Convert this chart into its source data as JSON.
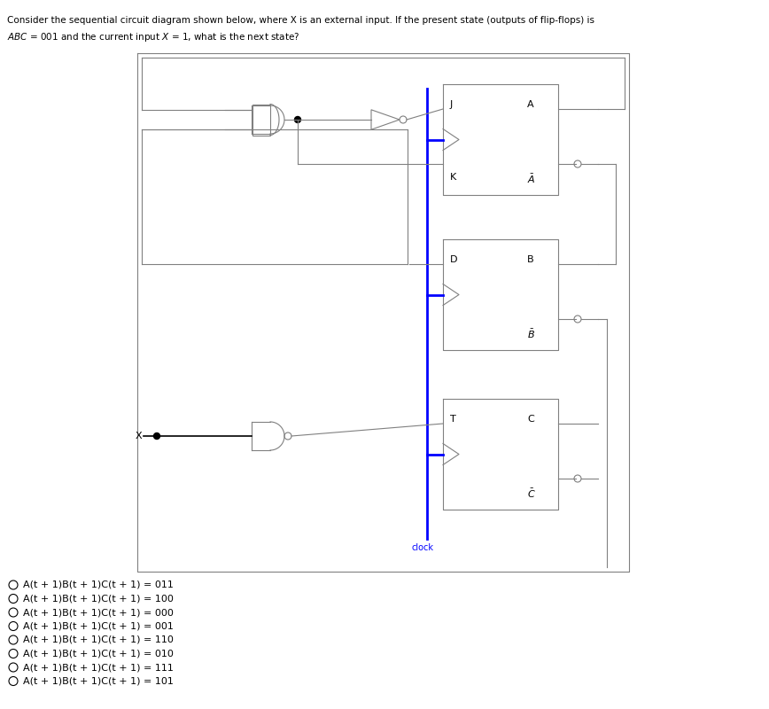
{
  "title_line1": "Consider the sequential circuit diagram shown below, where X is an external input. If the present state (outputs of flip-flops) is",
  "title_line2": "ABC = 001 and the current input X = 1, what is the next state?",
  "options": [
    "A(t + 1)B(t + 1)C(t + 1) = 011",
    "A(t + 1)B(t + 1)C(t + 1) = 100",
    "A(t + 1)B(t + 1)C(t + 1) = 000",
    "A(t + 1)B(t + 1)C(t + 1) = 001",
    "A(t + 1)B(t + 1)C(t + 1) = 110",
    "A(t + 1)B(t + 1)C(t + 1) = 010",
    "A(t + 1)B(t + 1)C(t + 1) = 111",
    "A(t + 1)B(t + 1)C(t + 1) = 101"
  ],
  "bg_color": "#ffffff",
  "text_color": "#000000",
  "blue_color": "#0000ff",
  "gray_color": "#808080",
  "circuit_box_color": "#808080",
  "title_color_normal": "#000000",
  "title_color_highlight": "#0000cd"
}
